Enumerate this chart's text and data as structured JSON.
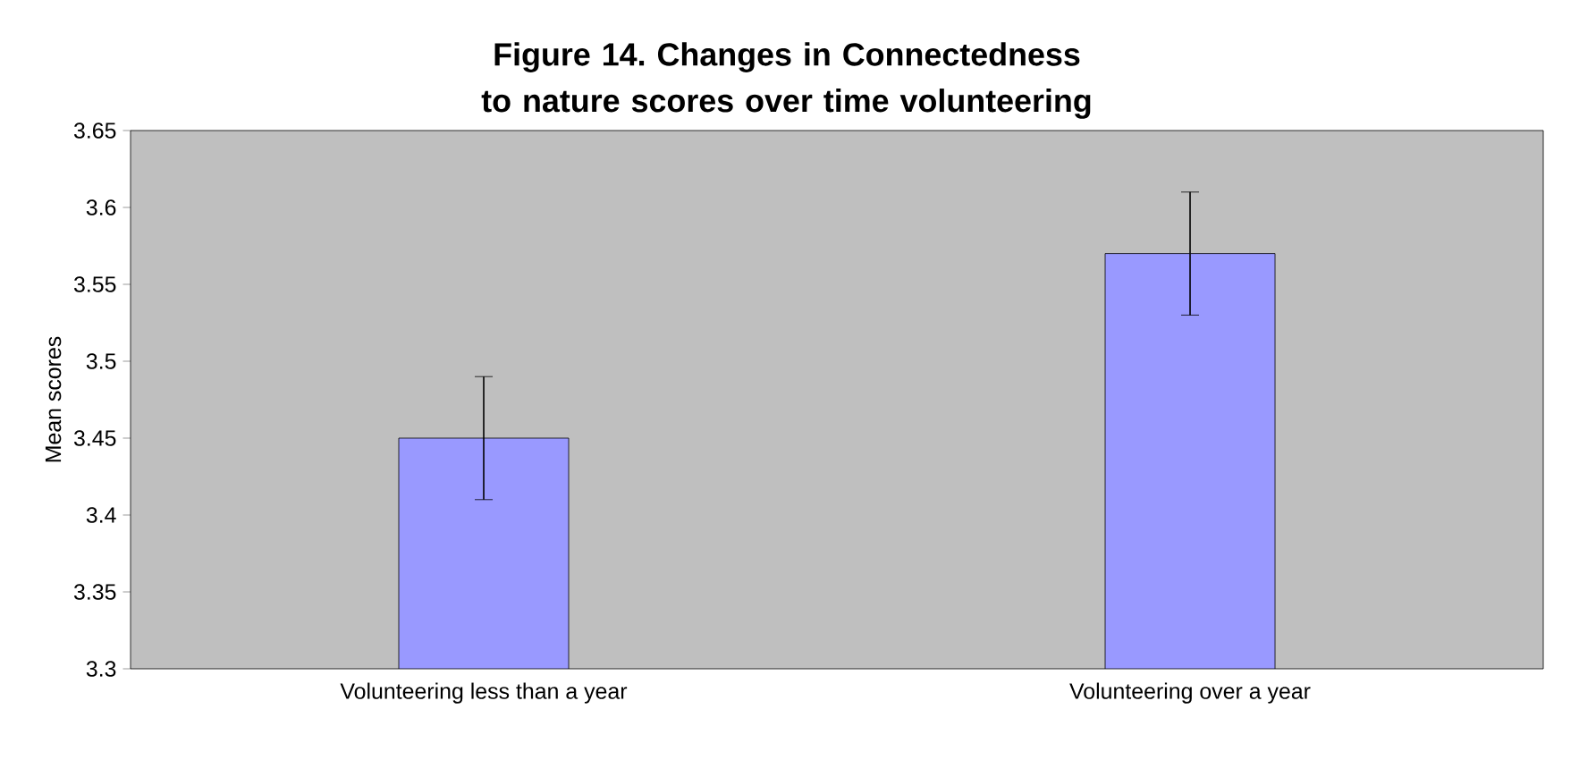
{
  "chart_data": {
    "type": "bar",
    "title": "Figure 14. Changes in Connectedness to nature scores over time volunteering",
    "ylabel": "Mean scores",
    "categories": [
      "Volunteering less than a year",
      "Volunteering over a year"
    ],
    "values": [
      3.45,
      3.57
    ],
    "errors": [
      0.04,
      0.04
    ],
    "color": "#9999ff",
    "ylim": [
      3.3,
      3.65
    ],
    "yticks": [
      3.3,
      3.35,
      3.4,
      3.45,
      3.5,
      3.55,
      3.6,
      3.65
    ],
    "grid": false
  }
}
